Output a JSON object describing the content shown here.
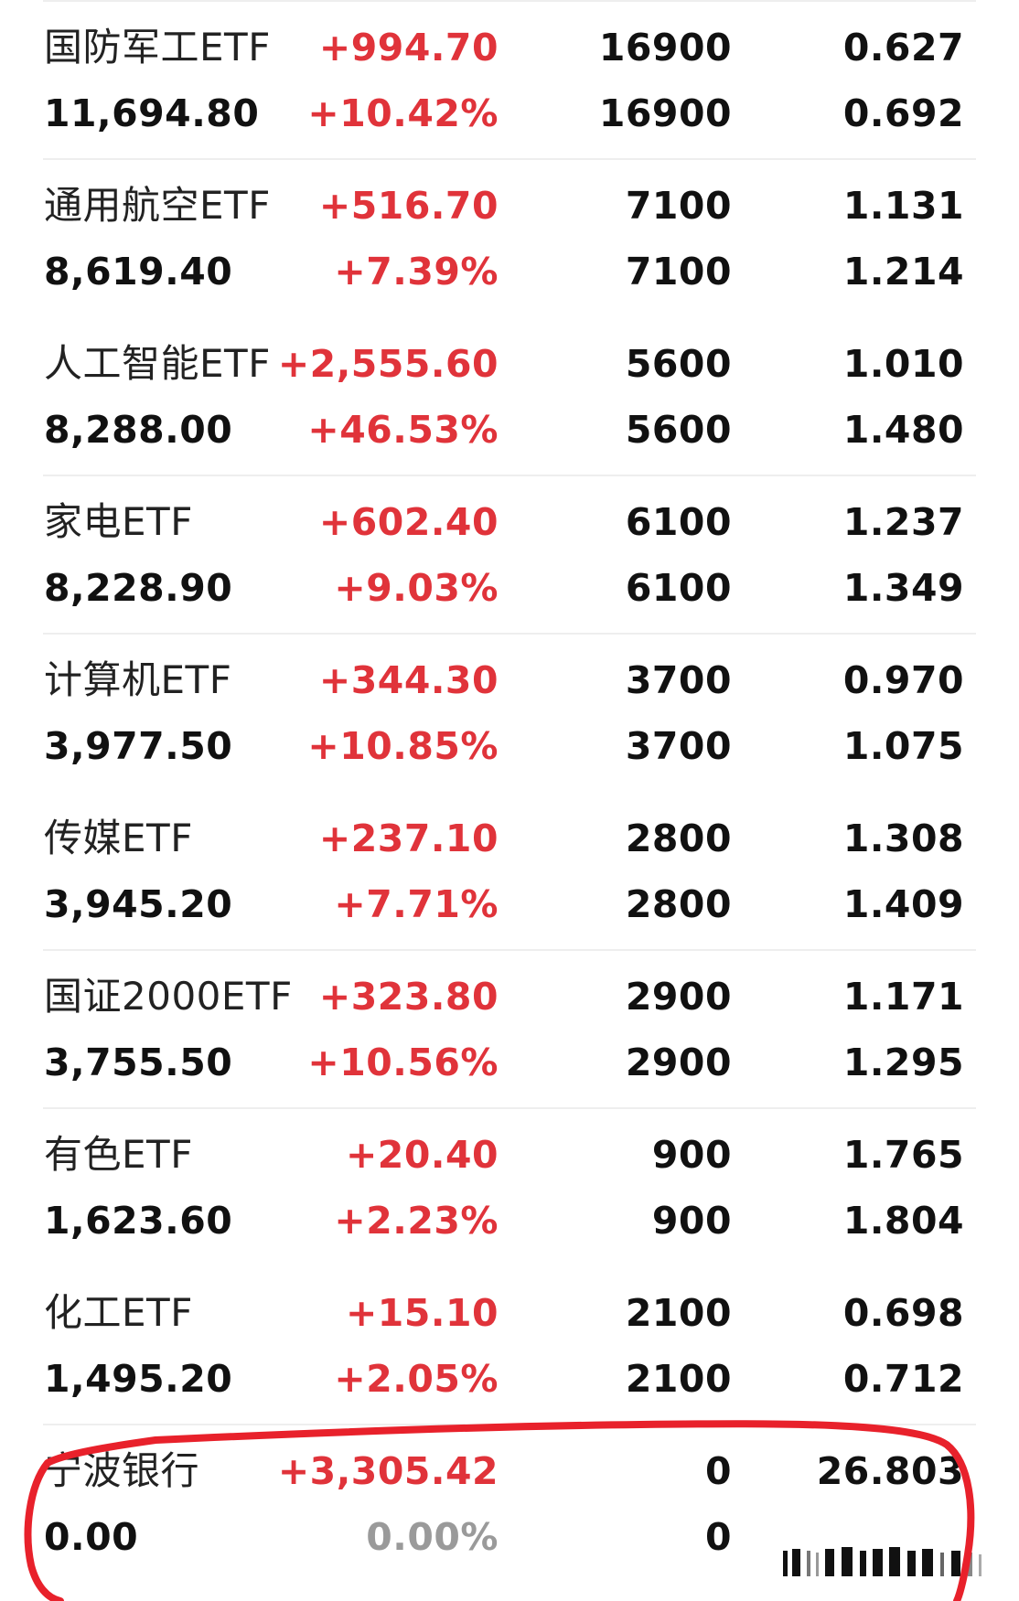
{
  "rows": [
    {
      "name": "国防军工ETF",
      "value": "11,694.80",
      "change_amount": "+994.70",
      "change_pct": "+10.42%",
      "qty_a": "16900",
      "qty_b": "16900",
      "price_a": "0.627",
      "price_b": "0.692"
    },
    {
      "name": "通用航空ETF",
      "value": "8,619.40",
      "change_amount": "+516.70",
      "change_pct": "+7.39%",
      "qty_a": "7100",
      "qty_b": "7100",
      "price_a": "1.131",
      "price_b": "1.214"
    },
    {
      "name": "人工智能ETF",
      "value": "8,288.00",
      "change_amount": "+2,555.60",
      "change_pct": "+46.53%",
      "qty_a": "5600",
      "qty_b": "5600",
      "price_a": "1.010",
      "price_b": "1.480"
    },
    {
      "name": "家电ETF",
      "value": "8,228.90",
      "change_amount": "+602.40",
      "change_pct": "+9.03%",
      "qty_a": "6100",
      "qty_b": "6100",
      "price_a": "1.237",
      "price_b": "1.349"
    },
    {
      "name": "计算机ETF",
      "value": "3,977.50",
      "change_amount": "+344.30",
      "change_pct": "+10.85%",
      "qty_a": "3700",
      "qty_b": "3700",
      "price_a": "0.970",
      "price_b": "1.075"
    },
    {
      "name": "传媒ETF",
      "value": "3,945.20",
      "change_amount": "+237.10",
      "change_pct": "+7.71%",
      "qty_a": "2800",
      "qty_b": "2800",
      "price_a": "1.308",
      "price_b": "1.409"
    },
    {
      "name": "国证2000ETF",
      "value": "3,755.50",
      "change_amount": "+323.80",
      "change_pct": "+10.56%",
      "qty_a": "2900",
      "qty_b": "2900",
      "price_a": "1.171",
      "price_b": "1.295"
    },
    {
      "name": "有色ETF",
      "value": "1,623.60",
      "change_amount": "+20.40",
      "change_pct": "+2.23%",
      "qty_a": "900",
      "qty_b": "900",
      "price_a": "1.765",
      "price_b": "1.804"
    },
    {
      "name": "化工ETF",
      "value": "1,495.20",
      "change_amount": "+15.10",
      "change_pct": "+2.05%",
      "qty_a": "2100",
      "qty_b": "2100",
      "price_a": "0.698",
      "price_b": "0.712"
    },
    {
      "name": "宁波银行",
      "value": "0.00",
      "change_amount": "+3,305.42",
      "change_pct": "0.00%",
      "qty_a": "0",
      "qty_b": "0",
      "price_a": "26.803",
      "price_b": ""
    }
  ],
  "colors": {
    "gain": "#e0333a",
    "neutral": "#9a9a9a",
    "annotation_circle": "#e8212b"
  }
}
